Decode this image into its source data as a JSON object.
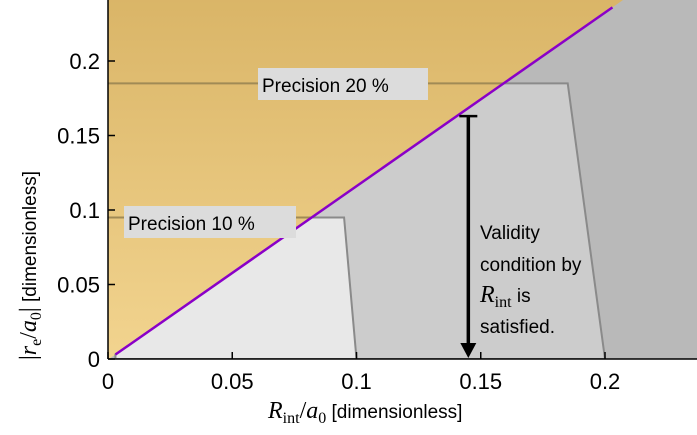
{
  "chart_data": {
    "type": "area",
    "xlim": [
      0,
      0.24
    ],
    "ylim": [
      0,
      0.24
    ],
    "x_ticks": [
      "0",
      "0.05",
      "0.1",
      "0.15",
      "0.2"
    ],
    "x_tick_values": [
      0,
      0.05,
      0.1,
      0.15,
      0.2
    ],
    "y_ticks": [
      "0",
      "0.05",
      "0.1",
      "0.15",
      "0.2"
    ],
    "y_tick_values": [
      0,
      0.05,
      0.1,
      0.15,
      0.2
    ],
    "xlabel": {
      "var": "R",
      "sub": "int",
      "rest": "/",
      "var2": "a",
      "sub2": "0",
      "unit": " [dimensionless]"
    },
    "ylabel": {
      "bar_left": "|",
      "var": "r",
      "sub": "e",
      "rest": "/",
      "var2": "a",
      "sub2": "0",
      "bar_right": "|",
      "unit": " [dimensionless]"
    },
    "grid": false,
    "regions": [
      {
        "label": "Precision 20 %",
        "boundary_x": [
          0,
          0.165,
          0.185,
          0.2
        ],
        "boundary_y": [
          0.185,
          0.185,
          0.185,
          0
        ],
        "color": "#cccccc"
      },
      {
        "label": "Precision 10 %",
        "boundary_x": [
          0,
          0.095,
          0.1
        ],
        "boundary_y": [
          0.095,
          0.095,
          0
        ],
        "color": "#e8e8e8"
      }
    ],
    "validity_line": {
      "x": [
        0.003,
        0.203
      ],
      "y": [
        0.003,
        0.236
      ],
      "color": "#8a00c8"
    },
    "annotation": {
      "line1": "Validity",
      "line2": "condition by",
      "var": "R",
      "sub": "int",
      "line3_rest": " is",
      "line4": "satisfied.",
      "arrow_x": 0.145,
      "arrow_y_from": 0.163,
      "arrow_y_to": 0.0
    },
    "colors": {
      "background_gray": "#b9b9b9",
      "orange_light": "#f2d48f",
      "orange_dark": "#d9b466",
      "gray_mid": "#cccccc",
      "gray_light": "#e8e8e8",
      "validity": "#8a00c8",
      "region_edge": "#8a8a8a",
      "label_box": "#dcdcdc"
    }
  }
}
